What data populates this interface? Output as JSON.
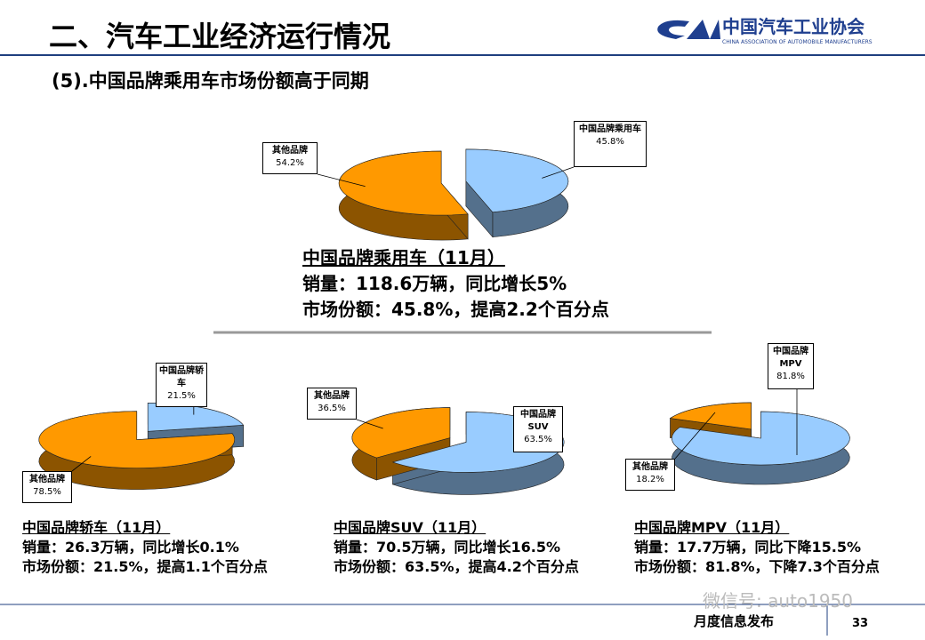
{
  "header": {
    "title": "二、汽车工业经济运行情况",
    "subtitle": "(5).中国品牌乘用车市场份额高于同期",
    "logo_text": "中国汽车工业协会",
    "logo_subtext": "CHINA ASSOCIATION OF AUTOMOBILE MANUFACTURERS"
  },
  "footer": {
    "label": "月度信息发布",
    "page": "33",
    "watermark": "微信号: auto1950"
  },
  "chart_data": [
    {
      "type": "pie",
      "categories": [
        "中国品牌乘用车",
        "其他品牌"
      ],
      "values": [
        45.8,
        54.2
      ],
      "value_labels": [
        "45.8%",
        "54.2%"
      ],
      "colors": [
        "#99ccff",
        "#ff9900"
      ],
      "annotations": [
        "中国品牌乘用车（11月）",
        "销量：118.6万辆，同比增长5%",
        "市场份额：45.8%，提高2.2个百分点"
      ]
    },
    {
      "type": "pie",
      "categories": [
        "中国品牌轿车",
        "其他品牌"
      ],
      "values": [
        21.5,
        78.5
      ],
      "value_labels": [
        "21.5%",
        "78.5%"
      ],
      "colors": [
        "#99ccff",
        "#ff9900"
      ],
      "annotations": [
        "中国品牌轿车（11月）",
        "销量：26.3万辆，同比增长0.1%",
        "市场份额：21.5%，提高1.1个百分点"
      ]
    },
    {
      "type": "pie",
      "categories": [
        "中国品牌SUV",
        "其他品牌"
      ],
      "values": [
        63.5,
        36.5
      ],
      "value_labels": [
        "63.5%",
        "36.5%"
      ],
      "colors": [
        "#99ccff",
        "#ff9900"
      ],
      "annotations": [
        "中国品牌SUV（11月）",
        "销量：70.5万辆，同比增长16.5%",
        "市场份额：63.5%，提高4.2个百分点"
      ]
    },
    {
      "type": "pie",
      "categories": [
        "中国品牌MPV",
        "其他品牌"
      ],
      "values": [
        81.8,
        18.2
      ],
      "value_labels": [
        "81.8%",
        "18.2%"
      ],
      "colors": [
        "#99ccff",
        "#ff9900"
      ],
      "annotations": [
        "中国品牌MPV（11月）",
        "销量：17.7万辆，同比下降15.5%",
        "市场份额：81.8%，下降7.3个百分点"
      ]
    }
  ]
}
